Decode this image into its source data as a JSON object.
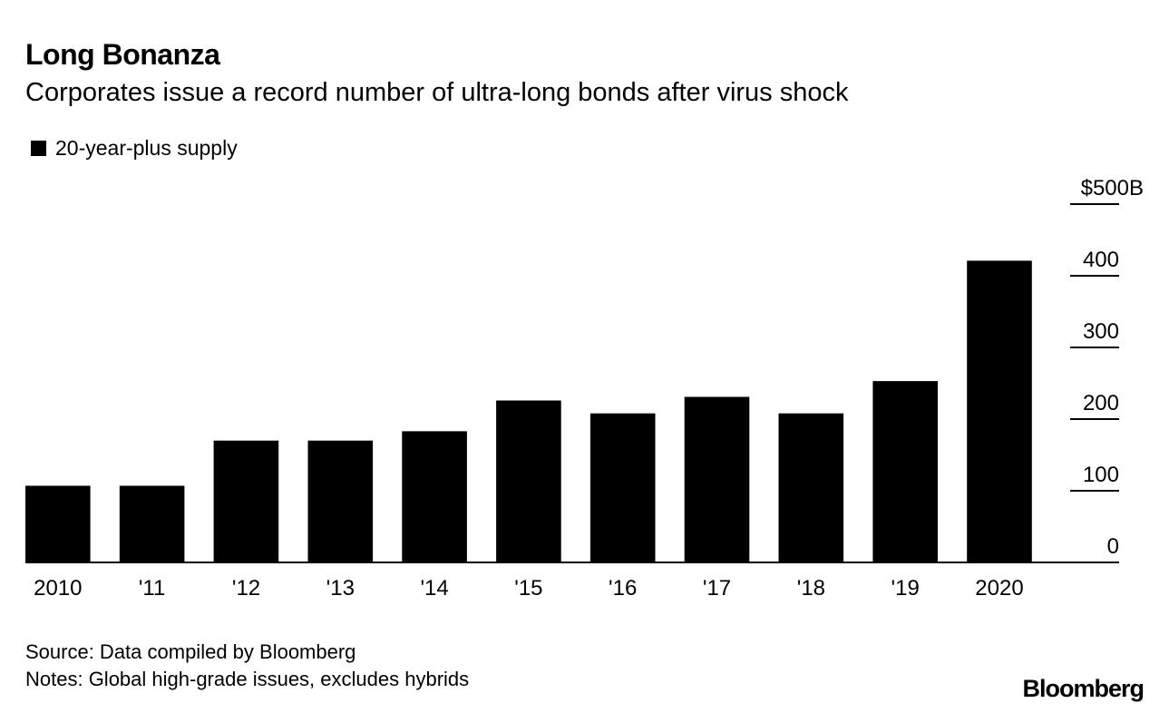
{
  "title": "Long Bonanza",
  "subtitle": "Corporates issue a record number of ultra-long bonds after virus shock",
  "legend": {
    "label": "20-year-plus supply",
    "color": "#000000"
  },
  "source": "Source: Data compiled by Bloomberg",
  "notes": "Notes: Global high-grade issues, excludes hybrids",
  "brand": "Bloomberg",
  "chart_data": {
    "type": "bar",
    "title": "Long Bonanza",
    "categories": [
      "2010",
      "'11",
      "'12",
      "'13",
      "'14",
      "'15",
      "'16",
      "'17",
      "'18",
      "'19",
      "2020"
    ],
    "series": [
      {
        "name": "20-year-plus supply",
        "values": [
          107,
          107,
          170,
          170,
          183,
          226,
          208,
          231,
          208,
          253,
          421
        ]
      }
    ],
    "ylim": [
      0,
      500
    ],
    "yticks": [
      0,
      100,
      200,
      300,
      400,
      500
    ],
    "ytick_labels": [
      "0",
      "100",
      "200",
      "300",
      "400",
      "$500B"
    ],
    "y_axis_side": "right",
    "bar_color": "#000000",
    "xlabel": "",
    "ylabel": ""
  }
}
